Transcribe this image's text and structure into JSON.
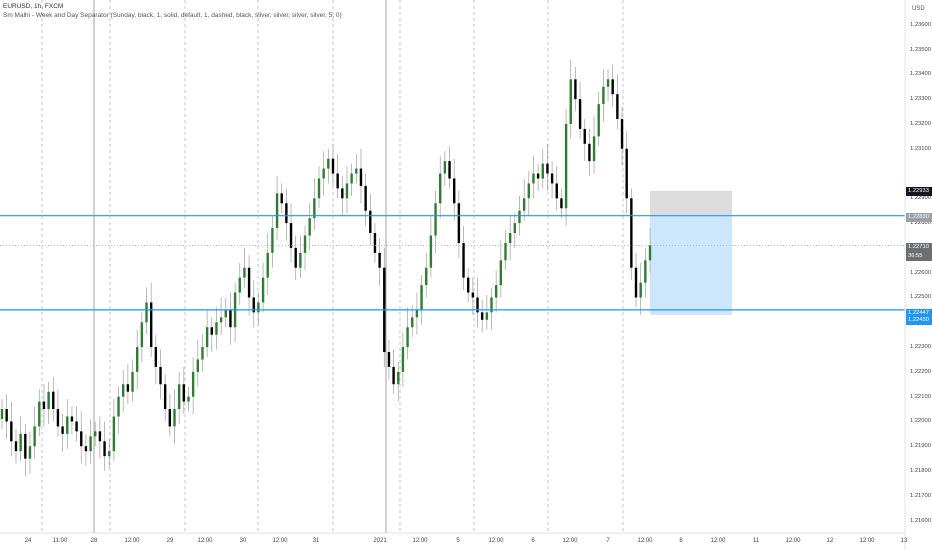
{
  "legend": {
    "symbol": "EURUSD, 1h, FXCM",
    "indicator": "Sm Malhi - Week and Day Separator (Sunday, black, 1, solid, default, 1, dashed, black, silver, silver, silver, silver, 5, 0)"
  },
  "price_axis": {
    "currency": "USD",
    "ticks": [
      "1.23600",
      "1.23500",
      "1.23400",
      "1.23300",
      "1.23200",
      "1.23100",
      "1.22900",
      "1.22800",
      "1.22600",
      "1.22500",
      "1.22300",
      "1.22200",
      "1.22100",
      "1.22000",
      "1.21900",
      "1.21800",
      "1.21700",
      "1.21600"
    ],
    "tags": [
      {
        "value": "1.22933",
        "color": "#131722"
      },
      {
        "value": "1.22830",
        "color": "#9aa0a6"
      },
      {
        "value": "1.22710",
        "color": "#6b6f73"
      },
      {
        "value": "36:55",
        "color": "#6b6f73"
      },
      {
        "value": "1.22447",
        "color": "#2196f3"
      },
      {
        "value": "1.22430",
        "color": "#2196f3"
      }
    ]
  },
  "time_axis": {
    "labels": [
      "24",
      "11:00",
      "28",
      "12:00",
      "29",
      "12:00",
      "30",
      "12:00",
      "31",
      "2021",
      "12:00",
      "5",
      "12:00",
      "6",
      "12:00",
      "7",
      "12:00",
      "8",
      "12:00",
      "11",
      "12:00",
      "12",
      "12:00",
      "13"
    ]
  },
  "colors": {
    "bull": "#2e7d32",
    "bear": "#000000",
    "hline": "#2196f3",
    "separator_week": "#b0b0b0",
    "separator_day": "#b8b8b8",
    "position_target": "#bbdefb",
    "position_stop": "#d6d6d6"
  },
  "chart_data": {
    "type": "candlestick",
    "symbol": "EURUSD",
    "interval": "1h",
    "ylim": [
      1.2155,
      1.237
    ],
    "horizontal_levels": [
      1.2283,
      1.2245
    ],
    "long_position": {
      "entry": 1.2283,
      "target": 1.2293,
      "stop": 1.2243
    },
    "last_price": 1.2271,
    "closes": [
      1.2205,
      1.22,
      1.2192,
      1.2188,
      1.2195,
      1.2185,
      1.219,
      1.2198,
      1.2208,
      1.2205,
      1.2212,
      1.2205,
      1.2198,
      1.2195,
      1.2202,
      1.22,
      1.2196,
      1.219,
      1.2188,
      1.2194,
      1.2196,
      1.2192,
      1.2186,
      1.2188,
      1.2202,
      1.221,
      1.2215,
      1.2212,
      1.222,
      1.223,
      1.224,
      1.2248,
      1.223,
      1.2222,
      1.2215,
      1.2205,
      1.2198,
      1.2205,
      1.2215,
      1.2208,
      1.221,
      1.222,
      1.2225,
      1.223,
      1.2238,
      1.2235,
      1.224,
      1.2242,
      1.2245,
      1.2238,
      1.2252,
      1.2258,
      1.2262,
      1.225,
      1.2244,
      1.2248,
      1.2258,
      1.2268,
      1.2278,
      1.2292,
      1.2288,
      1.228,
      1.227,
      1.2262,
      1.2268,
      1.2275,
      1.2282,
      1.229,
      1.2298,
      1.2302,
      1.2306,
      1.23,
      1.2294,
      1.229,
      1.2296,
      1.23,
      1.2302,
      1.2295,
      1.2285,
      1.2276,
      1.2268,
      1.2262,
      1.2228,
      1.2222,
      1.2215,
      1.222,
      1.223,
      1.2238,
      1.2242,
      1.2245,
      1.2255,
      1.2262,
      1.2275,
      1.2288,
      1.23,
      1.2305,
      1.2298,
      1.2288,
      1.2272,
      1.2258,
      1.2252,
      1.225,
      1.2244,
      1.2241,
      1.2244,
      1.225,
      1.2255,
      1.2265,
      1.2272,
      1.2276,
      1.228,
      1.2285,
      1.229,
      1.2296,
      1.23,
      1.2298,
      1.2304,
      1.23,
      1.2296,
      1.229,
      1.2286,
      1.232,
      1.2338,
      1.233,
      1.2318,
      1.2312,
      1.2305,
      1.2315,
      1.2328,
      1.2335,
      1.2338,
      1.2332,
      1.2322,
      1.231,
      1.229,
      1.2262,
      1.225,
      1.2256,
      1.2265,
      1.2271
    ]
  }
}
